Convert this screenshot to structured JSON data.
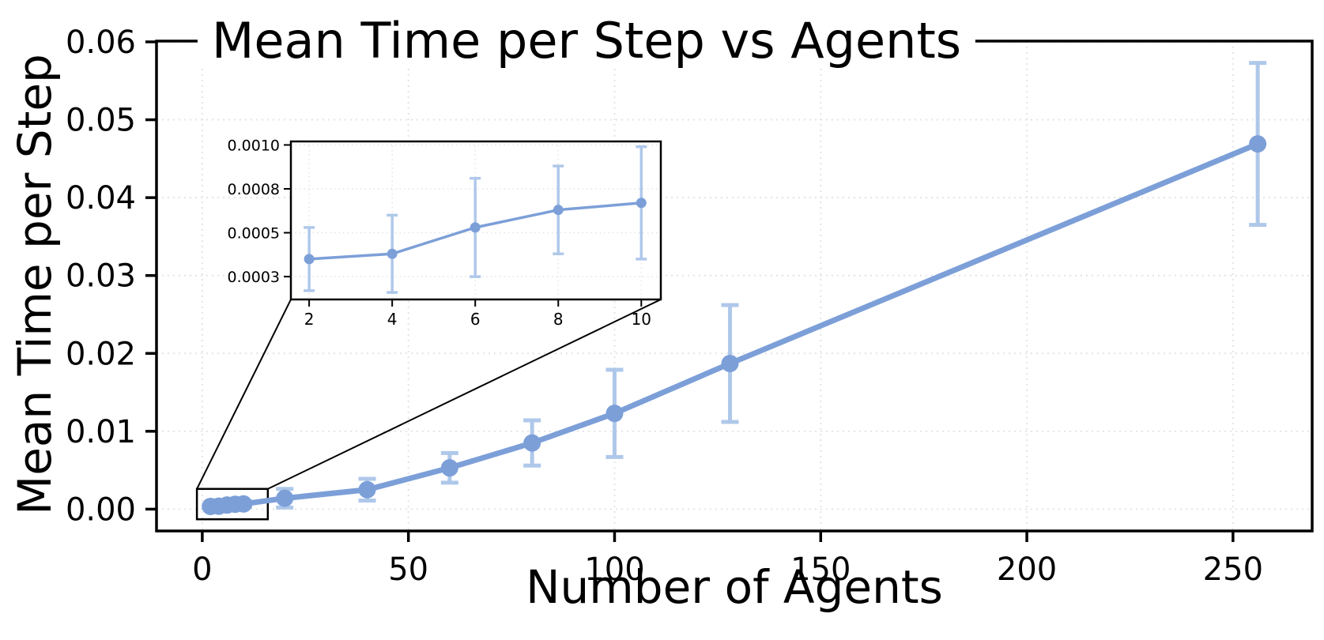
{
  "chart_data": {
    "type": "line",
    "title": "Mean Time per Step vs Agents",
    "xlabel": "Number of Agents",
    "ylabel": "Mean Time per Step",
    "x": [
      2,
      4,
      6,
      8,
      10,
      20,
      40,
      60,
      80,
      100,
      128,
      256
    ],
    "y": [
      0.00035,
      0.00038,
      0.00053,
      0.00063,
      0.00067,
      0.0014,
      0.0025,
      0.0053,
      0.0085,
      0.0123,
      0.0187,
      0.0469
    ],
    "yerr": [
      0.00018,
      0.00022,
      0.00028,
      0.00025,
      0.00032,
      0.0012,
      0.0014,
      0.0019,
      0.0029,
      0.0056,
      0.0075,
      0.0104
    ],
    "xlim": [
      -11.1,
      269.2
    ],
    "ylim": [
      -0.0028,
      0.0601
    ],
    "xticks": {
      "values": [
        0,
        50,
        100,
        150,
        200,
        250
      ],
      "labels": [
        "0",
        "50",
        "100",
        "150",
        "200",
        "250"
      ]
    },
    "yticks": {
      "values": [
        0.0,
        0.01,
        0.02,
        0.03,
        0.04,
        0.05,
        0.06
      ],
      "labels": [
        "0.00",
        "0.01",
        "0.02",
        "0.03",
        "0.04",
        "0.05",
        "0.06"
      ]
    },
    "grid": true,
    "legend": "none",
    "zoom_region": {
      "x0": -1.3,
      "x1": 15.9,
      "y0": -0.0013,
      "y1": 0.0026
    },
    "inset": {
      "x": [
        2,
        4,
        6,
        8,
        10
      ],
      "y": [
        0.00035,
        0.00038,
        0.00053,
        0.00063,
        0.00067
      ],
      "yerr": [
        0.00018,
        0.00022,
        0.00028,
        0.00025,
        0.00032
      ],
      "xlim": [
        1.56,
        10.47
      ],
      "ylim": [
        0.00012,
        0.00102
      ],
      "xticks": {
        "values": [
          2,
          4,
          6,
          8,
          10
        ],
        "labels": [
          "2",
          "4",
          "6",
          "8",
          "10"
        ]
      },
      "yticks": {
        "values": [
          0.00025,
          0.0005,
          0.00075,
          0.001
        ],
        "labels": [
          "0.0003",
          "0.0005",
          "0.0008",
          "0.0010"
        ]
      }
    },
    "colors": {
      "line": "#7C9FD8",
      "error": "#AFC8EA",
      "grid": "#E4E4E4",
      "spine": "#000000",
      "text": "#000000",
      "background": "#FFFFFF"
    }
  }
}
